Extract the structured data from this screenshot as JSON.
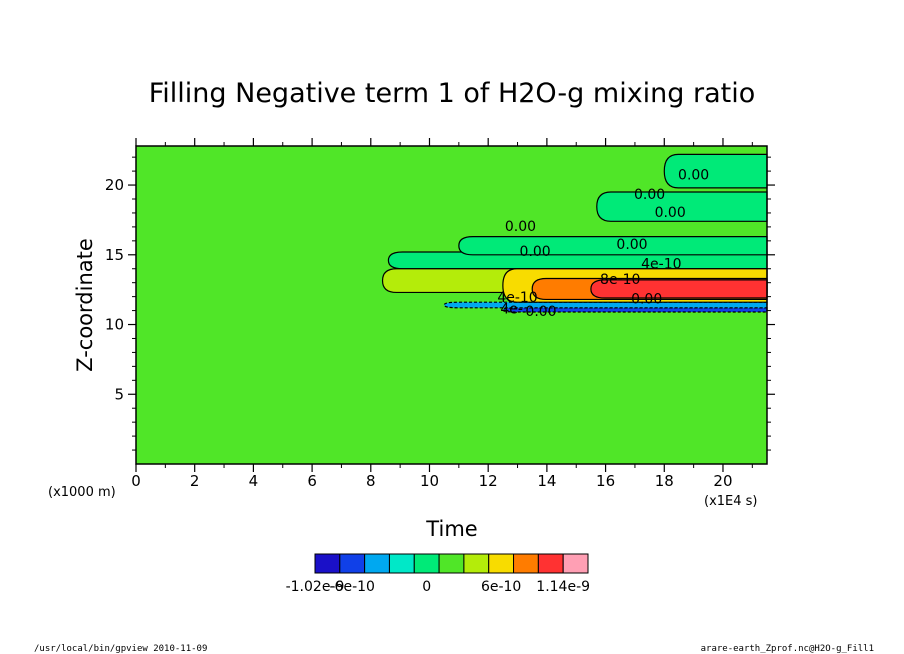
{
  "chart_data": {
    "type": "heatmap",
    "title": "Filling Negative term 1 of H2O-g mixing ratio",
    "xlabel": "Time",
    "ylabel": "Z-coordinate",
    "x_unit": "(x1E4 s)",
    "y_unit": "(x1000 m)",
    "xlim": [
      0,
      21.5
    ],
    "ylim": [
      0,
      22.8
    ],
    "xticks": [
      0,
      2,
      4,
      6,
      8,
      10,
      12,
      14,
      16,
      18,
      20
    ],
    "yticks": [
      5,
      10,
      15,
      20
    ],
    "background_value": 0,
    "bands": [
      {
        "level": -2,
        "z": [
          10.9,
          11.2
        ],
        "x": [
          12.5,
          21.5
        ]
      },
      {
        "level": -1,
        "z": [
          11.2,
          11.6
        ],
        "x": [
          10.5,
          21.5
        ]
      },
      {
        "level": 1,
        "z": [
          14.0,
          15.2
        ],
        "x": [
          8.6,
          21.5
        ]
      },
      {
        "level": 2,
        "z": [
          12.3,
          14.0
        ],
        "x": [
          8.4,
          21.5
        ]
      },
      {
        "level": 3,
        "z": [
          11.6,
          14.0
        ],
        "x": [
          12.5,
          21.5
        ]
      },
      {
        "level": 4,
        "z": [
          11.8,
          13.3
        ],
        "x": [
          13.5,
          21.5
        ]
      },
      {
        "level": 5,
        "z": [
          11.9,
          13.2
        ],
        "x": [
          15.5,
          21.5
        ]
      },
      {
        "level": 1,
        "z": [
          15.0,
          16.3
        ],
        "x": [
          11.0,
          21.5
        ]
      },
      {
        "level": 1,
        "z": [
          17.4,
          19.5
        ],
        "x": [
          15.7,
          21.5
        ]
      },
      {
        "level": 1,
        "z": [
          19.8,
          22.2
        ],
        "x": [
          18.0,
          21.5
        ]
      }
    ],
    "contour_labels": [
      {
        "text": "0.00",
        "x": 19.0,
        "z": 20.4
      },
      {
        "text": "0.00",
        "x": 17.5,
        "z": 19.0
      },
      {
        "text": "0.00",
        "x": 18.2,
        "z": 17.7
      },
      {
        "text": "0.00",
        "x": 13.1,
        "z": 16.7
      },
      {
        "text": "0.00",
        "x": 16.9,
        "z": 15.4
      },
      {
        "text": "0.00",
        "x": 13.6,
        "z": 14.9
      },
      {
        "text": "4e-10",
        "x": 17.9,
        "z": 14.0
      },
      {
        "text": "8e-10",
        "x": 16.5,
        "z": 12.9
      },
      {
        "text": "0.00",
        "x": 17.4,
        "z": 11.5
      },
      {
        "text": "4e-10",
        "x": 13.0,
        "z": 11.6
      },
      {
        "text": "4e-",
        "x": 12.8,
        "z": 10.8
      },
      {
        "text": "0.00",
        "x": 13.8,
        "z": 10.6
      }
    ],
    "colorbar": {
      "colors": [
        "#1a10c8",
        "#1040e8",
        "#00a8f0",
        "#00e8c8",
        "#00ea78",
        "#50e628",
        "#b4ec0a",
        "#f8dc00",
        "#ff7c00",
        "#ff3232",
        "#ff9fb4"
      ],
      "labels": [
        "-1.02e-9",
        "-6e-10",
        "0",
        "6e-10",
        "1.14e-9"
      ],
      "label_positions": [
        0,
        1.5,
        4.5,
        7.5,
        10
      ]
    },
    "level_colors": {
      "-2": "#1040e8",
      "-1": "#00a8f0",
      "0": "#50e628",
      "1": "#00ea78",
      "2": "#b4ec0a",
      "3": "#f8dc00",
      "4": "#ff7c00",
      "5": "#ff3232"
    }
  },
  "footer": {
    "left": "/usr/local/bin/gpview  2010-11-09",
    "right": "arare-earth_Zprof.nc@H2O-g_Fill1"
  }
}
